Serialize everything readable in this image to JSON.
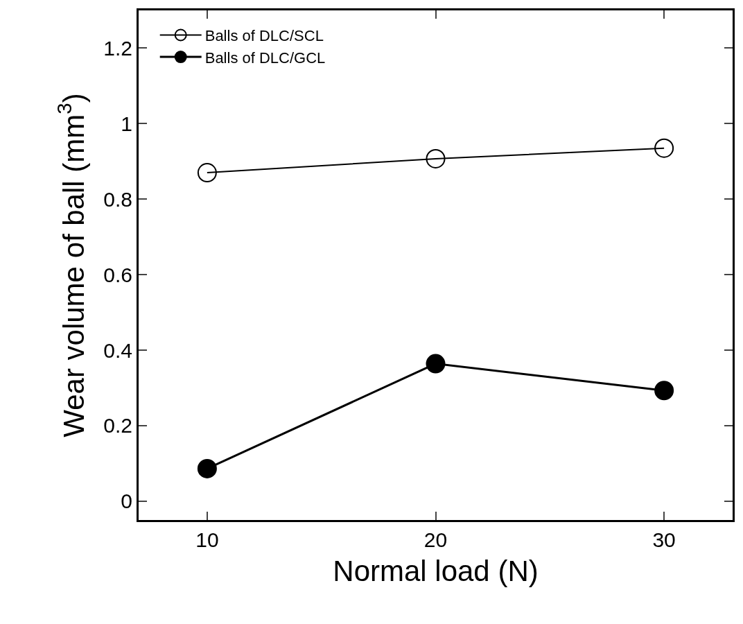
{
  "chart_data": {
    "type": "line",
    "xlabel": "Normal load (N)",
    "ylabel": "Wear volume of ball (mm$^{3}$)",
    "x": [
      10,
      20,
      30
    ],
    "series": [
      {
        "name": "Balls of DLC/SCL",
        "color": "#000000",
        "values": [
          0.87,
          0.907,
          0.935
        ]
      },
      {
        "name": "Balls of DLC/GCL",
        "color": "#000000",
        "values": [
          0.086,
          0.364,
          0.293
        ]
      }
    ],
    "xlim": [
      7,
      33
    ],
    "xticks": [
      10,
      20,
      30
    ],
    "ylim": [
      -0.05,
      1.3
    ],
    "yticks": [
      0,
      0.2,
      0.4,
      0.6,
      0.8,
      1,
      1.2
    ],
    "legend": "top left",
    "marker": "circle",
    "line_style": "solid"
  }
}
